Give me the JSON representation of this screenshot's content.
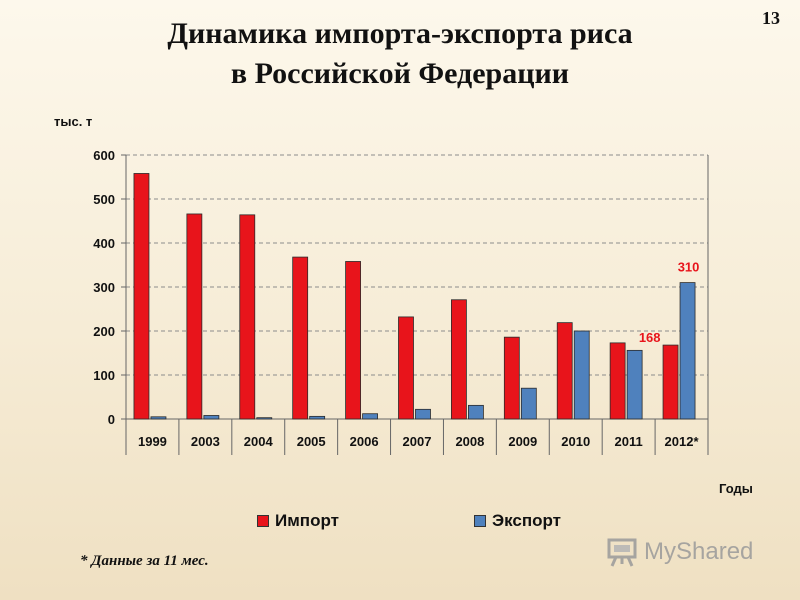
{
  "page": {
    "title_line1": "Динамика импорта-экспорта риса",
    "title_line2": "в Российской Федерации",
    "page_number": "13",
    "footnote": "* Данные за 11 мес.",
    "watermark": "MyShared"
  },
  "chart_data": {
    "type": "bar",
    "title": "Динамика импорта-экспорта риса в Российской Федерации",
    "ylabel": "тыс. т",
    "xlabel": "Годы",
    "categories": [
      "1999",
      "2003",
      "2004",
      "2005",
      "2006",
      "2007",
      "2008",
      "2009",
      "2010",
      "2011",
      "2012*"
    ],
    "series": [
      {
        "name": "Импорт",
        "color": "#e8141b",
        "values": [
          558,
          466,
          464,
          368,
          358,
          232,
          271,
          186,
          219,
          173,
          168
        ]
      },
      {
        "name": "Экспорт",
        "color": "#4f81bd",
        "values": [
          5,
          8,
          3,
          6,
          12,
          22,
          31,
          70,
          200,
          156,
          310
        ]
      }
    ],
    "data_labels": [
      {
        "series": "Импорт",
        "category": "2012*",
        "text": "168"
      },
      {
        "series": "Экспорт",
        "category": "2012*",
        "text": "310"
      }
    ],
    "ylim": [
      0,
      600
    ],
    "yticks": [
      0,
      100,
      200,
      300,
      400,
      500,
      600
    ],
    "grid": true,
    "legend_position": "bottom"
  }
}
